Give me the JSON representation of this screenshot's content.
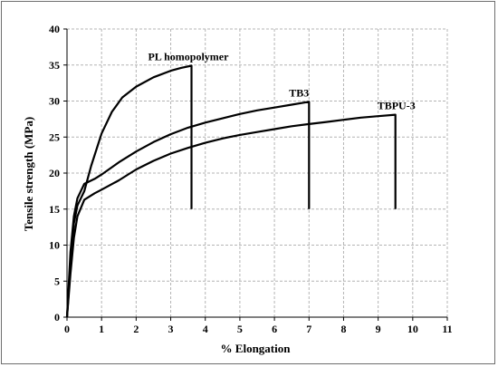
{
  "chart_data": {
    "type": "line",
    "xlabel": "% Elongation",
    "ylabel": "Tensile strength (MPa)",
    "xlim": [
      0,
      11
    ],
    "ylim": [
      0,
      40
    ],
    "xticks": [
      0,
      1,
      2,
      3,
      4,
      5,
      6,
      7,
      8,
      9,
      10,
      11
    ],
    "yticks": [
      0,
      5,
      10,
      15,
      20,
      25,
      30,
      35,
      40
    ],
    "grid": true,
    "colors": {
      "line": "#000000",
      "grid": "#b4b4b4",
      "frame": "#6e6e6e"
    },
    "series": [
      {
        "name": "PL homopolymer",
        "x": [
          0,
          0.1,
          0.2,
          0.3,
          0.5,
          0.7,
          1.0,
          1.3,
          1.6,
          2.0,
          2.5,
          3.0,
          3.3,
          3.6,
          3.6
        ],
        "y": [
          0,
          7,
          13,
          15.5,
          17.5,
          21,
          25.5,
          28.5,
          30.5,
          32,
          33.3,
          34.2,
          34.6,
          34.9,
          15
        ]
      },
      {
        "name": "TB3",
        "x": [
          0,
          0.1,
          0.2,
          0.3,
          0.5,
          0.8,
          1.0,
          1.5,
          2.0,
          2.5,
          3.0,
          3.5,
          4.0,
          4.5,
          5.0,
          5.5,
          6.0,
          6.5,
          7.0,
          7.0
        ],
        "y": [
          0,
          9,
          14,
          16.5,
          18.5,
          19.2,
          19.8,
          21.5,
          23,
          24.3,
          25.4,
          26.3,
          27,
          27.6,
          28.2,
          28.7,
          29.1,
          29.5,
          29.9,
          15
        ]
      },
      {
        "name": "TBPU-3",
        "x": [
          0,
          0.1,
          0.2,
          0.3,
          0.5,
          0.8,
          1.0,
          1.5,
          2.0,
          2.5,
          3.0,
          3.5,
          4.0,
          4.5,
          5.0,
          5.5,
          6.0,
          6.5,
          7.0,
          7.5,
          8.0,
          8.5,
          9.0,
          9.5,
          9.5
        ],
        "y": [
          0,
          6,
          11,
          14,
          16.3,
          17.2,
          17.7,
          19,
          20.5,
          21.7,
          22.7,
          23.5,
          24.2,
          24.8,
          25.3,
          25.7,
          26.1,
          26.5,
          26.8,
          27.1,
          27.4,
          27.7,
          27.9,
          28.1,
          15
        ]
      }
    ],
    "annotations": [
      "PL homopolymer",
      "TB3",
      "TBPU-3"
    ]
  }
}
